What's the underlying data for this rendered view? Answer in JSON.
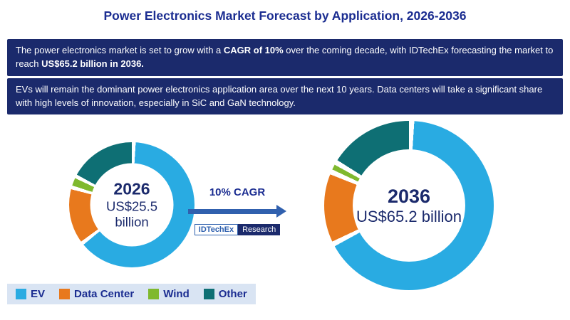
{
  "title": "Power Electronics Market Forecast by Application, 2026-2036",
  "banner": {
    "p1_pre": "The power electronics market is set to grow with a ",
    "p1_bold1": "CAGR of 10%",
    "p1_mid": " over the coming decade, with IDTechEx forecasting the market to reach ",
    "p1_bold2": "US$65.2 billion in 2036.",
    "p2": "EVs will remain the dominant power electronics application area over the next 10 years. Data centers will take a significant share with high levels of innovation, especially in SiC and GaN technology."
  },
  "arrow": {
    "label": "10% CAGR",
    "logo_main": "IDTechEx",
    "logo_sub": "Research"
  },
  "legend": {
    "items": [
      {
        "label": "EV",
        "color": "#29abe2"
      },
      {
        "label": "Data Center",
        "color": "#e8791d"
      },
      {
        "label": "Wind",
        "color": "#7fb92e"
      },
      {
        "label": "Other",
        "color": "#0e6f74"
      }
    ]
  },
  "chart_data": [
    {
      "type": "pie",
      "style": "donut",
      "year": "2026",
      "total_label": "US$25.5 billion",
      "total_value_billion_usd": 25.5,
      "segments": [
        {
          "label": "EV",
          "pct": 64,
          "color": "#29abe2"
        },
        {
          "label": "Data Center",
          "pct": 15,
          "color": "#e8791d"
        },
        {
          "label": "Wind",
          "pct": 3,
          "color": "#7fb92e"
        },
        {
          "label": "Other",
          "pct": 18,
          "color": "#0e6f74"
        }
      ]
    },
    {
      "type": "pie",
      "style": "donut",
      "year": "2036",
      "total_label": "US$65.2 billion",
      "total_value_billion_usd": 65.2,
      "segments": [
        {
          "label": "EV",
          "pct": 67,
          "color": "#29abe2"
        },
        {
          "label": "Data Center",
          "pct": 14,
          "color": "#e8791d"
        },
        {
          "label": "Wind",
          "pct": 2,
          "color": "#7fb92e"
        },
        {
          "label": "Other",
          "pct": 17,
          "color": "#0e6f74"
        }
      ]
    }
  ]
}
